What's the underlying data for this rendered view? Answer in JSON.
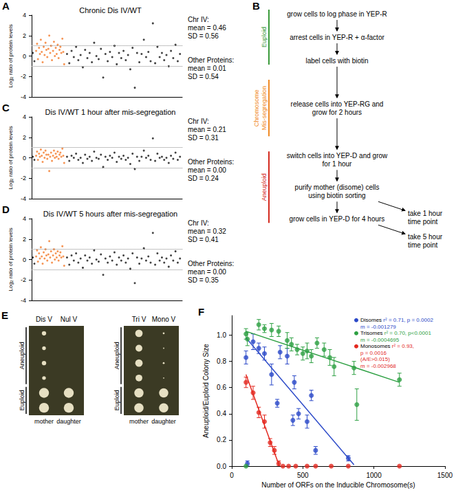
{
  "chart_data": [
    {
      "panel": "A",
      "type": "scatter",
      "title": "Chronic Dis IV/WT",
      "ylabel": "Log₂ ratio of protein levels",
      "xlim": [
        0,
        100
      ],
      "ylim": [
        -4,
        4
      ],
      "yticks": [
        -4,
        -2,
        0,
        2,
        4
      ],
      "tick_labels": "y",
      "grid": false,
      "reference_lines": [
        -1,
        1
      ],
      "annotations": [
        {
          "lines": [
            "Chr IV:",
            "mean = 0.46",
            "SD = 0.56"
          ]
        },
        {
          "lines": [
            "Other Proteins:",
            "mean = 0.01",
            "SD = 0.54"
          ]
        }
      ],
      "series": [
        {
          "name": "Other Proteins",
          "color": "#111111",
          "marker": "circle",
          "x": [
            0.8,
            1.8,
            23.5,
            25,
            26.5,
            28,
            29.5,
            31,
            32.5,
            34,
            35.5,
            37,
            38.5,
            40,
            41.5,
            43,
            44.5,
            46,
            47.5,
            49,
            50.5,
            52,
            53.5,
            55,
            56.5,
            58,
            59.5,
            61,
            62.5,
            64,
            65.5,
            67,
            68.5,
            70,
            71.5,
            73,
            74.5,
            76,
            77.5,
            79,
            80.5,
            82,
            83.5,
            85,
            86.5,
            88,
            89.5,
            91,
            92.5,
            94,
            95.5,
            97,
            98.5
          ],
          "values": [
            0.3,
            -0.5,
            0.2,
            -0.7,
            0.5,
            -0.1,
            0.9,
            -0.4,
            0.1,
            -1.1,
            0.6,
            -0.2,
            0.3,
            -0.6,
            1.3,
            0.0,
            -0.3,
            0.7,
            -2.1,
            0.2,
            -0.5,
            0.4,
            -0.1,
            1.0,
            -0.8,
            0.3,
            -0.2,
            0.5,
            -0.4,
            0.1,
            -1.3,
            0.8,
            -3.1,
            0.3,
            -0.6,
            0.2,
            1.6,
            -0.1,
            0.4,
            -0.5,
            3.2,
            -0.7,
            0.9,
            -0.1,
            0.3,
            -0.4,
            0.1,
            -1.0,
            0.5,
            -0.2,
            1.1,
            -0.5,
            0.2
          ]
        },
        {
          "name": "Chr IV",
          "color": "#f47a2a",
          "marker": "circle",
          "x": [
            3,
            3.6,
            4.2,
            4.9,
            5.5,
            6.1,
            6.7,
            7.3,
            8,
            8.6,
            9.2,
            9.8,
            10.4,
            11.1,
            11.7,
            12.3,
            12.9,
            13.5,
            14.2,
            14.8,
            15.4,
            16,
            16.6,
            17.3,
            17.9,
            18.5,
            19.1,
            19.7,
            20.4,
            21,
            21.6
          ],
          "values": [
            0.5,
            1.2,
            -0.3,
            0.8,
            0.2,
            1.6,
            0.4,
            -0.6,
            0.9,
            0.1,
            1.3,
            0.6,
            -0.1,
            0.7,
            2.0,
            0.3,
            1.0,
            -0.4,
            0.5,
            1.4,
            0.0,
            0.8,
            0.2,
            1.1,
            -0.2,
            0.6,
            0.9,
            0.3,
            1.7,
            0.4,
            -0.8
          ]
        }
      ]
    },
    {
      "panel": "C",
      "type": "scatter",
      "title": "Dis IV/WT 1 hour after mis-segregation",
      "ylabel": "Log₂ ratio of protein levels",
      "xlim": [
        0,
        100
      ],
      "ylim": [
        -4,
        4
      ],
      "yticks": [
        -4,
        -2,
        0,
        2,
        4
      ],
      "tick_labels": "y",
      "grid": false,
      "reference_lines": [
        -1,
        1
      ],
      "annotations": [
        {
          "lines": [
            "Chr IV:",
            "mean = 0.21",
            "SD = 0.31"
          ]
        },
        {
          "lines": [
            "Other Proteins:",
            "mean = 0.00",
            "SD = 0.24"
          ]
        }
      ],
      "series": [
        {
          "name": "Other Proteins",
          "color": "#111111",
          "marker": "circle",
          "x": [
            0.8,
            1.8,
            23.5,
            25,
            26.5,
            28,
            29.5,
            31,
            32.5,
            34,
            35.5,
            37,
            38.5,
            40,
            41.5,
            43,
            44.5,
            46,
            47.5,
            49,
            50.5,
            52,
            53.5,
            55,
            56.5,
            58,
            59.5,
            61,
            62.5,
            64,
            65.5,
            67,
            68.5,
            70,
            71.5,
            73,
            74.5,
            76,
            77.5,
            79,
            80.5,
            82,
            83.5,
            85,
            86.5,
            88,
            89.5,
            91,
            92.5,
            94,
            95.5,
            97,
            98.5
          ],
          "values": [
            0.1,
            -0.2,
            0.1,
            -0.3,
            0.2,
            0.0,
            0.4,
            -0.2,
            0.0,
            -0.5,
            0.3,
            -0.1,
            0.1,
            -0.3,
            0.6,
            0.0,
            -0.1,
            0.3,
            -0.9,
            0.1,
            -0.2,
            0.2,
            0.0,
            0.5,
            -0.4,
            0.1,
            -0.1,
            0.2,
            -0.2,
            0.0,
            -0.6,
            0.4,
            -1.1,
            0.1,
            -0.3,
            0.1,
            0.7,
            0.0,
            0.2,
            -0.2,
            1.9,
            -0.3,
            0.4,
            0.0,
            0.1,
            -0.2,
            0.0,
            -0.5,
            0.2,
            -0.1,
            0.5,
            -0.2,
            0.1
          ]
        },
        {
          "name": "Chr IV",
          "color": "#f47a2a",
          "marker": "circle",
          "x": [
            3,
            3.6,
            4.2,
            4.9,
            5.5,
            6.1,
            6.7,
            7.3,
            8,
            8.6,
            9.2,
            9.8,
            10.4,
            11.1,
            11.7,
            12.3,
            12.9,
            13.5,
            14.2,
            14.8,
            15.4,
            16,
            16.6,
            17.3,
            17.9,
            18.5,
            19.1,
            19.7,
            20.4,
            21,
            21.6
          ],
          "values": [
            0.2,
            0.6,
            -0.2,
            0.4,
            0.1,
            0.8,
            0.2,
            -0.4,
            0.5,
            0.0,
            0.7,
            0.3,
            -0.1,
            0.3,
            -1.3,
            0.1,
            0.5,
            -0.3,
            0.2,
            0.7,
            0.0,
            0.4,
            0.1,
            0.6,
            -0.1,
            0.3,
            0.5,
            0.1,
            0.9,
            0.2,
            -0.5
          ]
        }
      ]
    },
    {
      "panel": "D",
      "type": "scatter",
      "title": "Dis IV/WT 5 hours after mis-segregation",
      "ylabel": "Log₂ ratio of protein levels",
      "xlim": [
        0,
        100
      ],
      "ylim": [
        -4,
        4
      ],
      "yticks": [
        -4,
        -2,
        0,
        2,
        4
      ],
      "tick_labels": "y",
      "grid": false,
      "reference_lines": [
        -1,
        1
      ],
      "annotations": [
        {
          "lines": [
            "Chr IV:",
            "mean = 0.32",
            "SD = 0.41"
          ]
        },
        {
          "lines": [
            "Other Proteins:",
            "mean = 0.00",
            "SD = 0.35"
          ]
        }
      ],
      "series": [
        {
          "name": "Other Proteins",
          "color": "#111111",
          "marker": "circle",
          "x": [
            0.8,
            1.8,
            23.5,
            25,
            26.5,
            28,
            29.5,
            31,
            32.5,
            34,
            35.5,
            37,
            38.5,
            40,
            41.5,
            43,
            44.5,
            46,
            47.5,
            49,
            50.5,
            52,
            53.5,
            55,
            56.5,
            58,
            59.5,
            61,
            62.5,
            64,
            65.5,
            67,
            68.5,
            70,
            71.5,
            73,
            74.5,
            76,
            77.5,
            79,
            80.5,
            82,
            83.5,
            85,
            86.5,
            88,
            89.5,
            91,
            92.5,
            94,
            95.5,
            97,
            98.5
          ],
          "values": [
            0.2,
            -0.4,
            0.2,
            -0.5,
            0.4,
            -0.1,
            0.6,
            -0.3,
            0.1,
            -0.8,
            0.4,
            -0.1,
            0.2,
            -0.4,
            0.9,
            0.0,
            -0.2,
            0.5,
            -1.5,
            0.1,
            -0.3,
            0.3,
            -0.1,
            0.7,
            -0.5,
            0.2,
            -0.1,
            0.4,
            -0.3,
            0.1,
            -0.9,
            0.6,
            -2.3,
            0.2,
            -0.4,
            0.1,
            1.1,
            -0.1,
            0.3,
            -0.3,
            2.6,
            -0.5,
            0.6,
            -0.1,
            0.2,
            -0.3,
            0.1,
            -0.7,
            0.4,
            -0.1,
            0.8,
            -0.3,
            0.1
          ]
        },
        {
          "name": "Chr IV",
          "color": "#f47a2a",
          "marker": "circle",
          "x": [
            3,
            3.6,
            4.2,
            4.9,
            5.5,
            6.1,
            6.7,
            7.3,
            8,
            8.6,
            9.2,
            9.8,
            10.4,
            11.1,
            11.7,
            12.3,
            12.9,
            13.5,
            14.2,
            14.8,
            15.4,
            16,
            16.6,
            17.3,
            17.9,
            18.5,
            19.1,
            19.7,
            20.4,
            21,
            21.6
          ],
          "values": [
            0.3,
            0.9,
            -0.2,
            0.6,
            0.1,
            1.2,
            0.3,
            -0.4,
            0.7,
            0.1,
            1.0,
            0.4,
            -0.1,
            0.5,
            1.8,
            0.2,
            0.8,
            -0.3,
            0.4,
            1.0,
            0.0,
            0.6,
            0.2,
            0.8,
            -0.1,
            0.4,
            0.7,
            0.2,
            1.3,
            0.3,
            -0.6
          ]
        }
      ]
    },
    {
      "panel": "F",
      "type": "scatter",
      "xlabel": "Number of ORFs on the Inducible Chromosome(s)",
      "ylabel": "Aneuploid/Euploid Colony Size",
      "xlim": [
        0,
        1500
      ],
      "xticks": [
        0,
        500,
        1000,
        1500
      ],
      "ylim": [
        0,
        1.15
      ],
      "yticks": [
        {
          "value": 0,
          "label": "0.0"
        },
        0.2,
        0.4,
        0.6,
        0.8,
        {
          "value": 1,
          "label": "1.0"
        }
      ],
      "grid": false,
      "legend": "upper right",
      "series": [
        {
          "name": "Disomes",
          "color": "#2b49c8",
          "marker": "circle",
          "stats": [
            "r² = 0.71, p = 0.0002",
            "m = -0.001279"
          ],
          "x": [
            100,
            110,
            150,
            190,
            230,
            280,
            320,
            340,
            390,
            430,
            440,
            470,
            530,
            560,
            590,
            820
          ],
          "values": [
            0.83,
            0.02,
            0.95,
            0.9,
            0.86,
            0.7,
            0.48,
            0.87,
            0.84,
            0.35,
            0.64,
            0.4,
            0.34,
            0.54,
            0.12,
            0.06
          ],
          "errors": [
            0.05,
            0.02,
            0.06,
            0.04,
            0.05,
            0.08,
            0.03,
            0.05,
            0.06,
            0.04,
            0.05,
            0.04,
            0.05,
            0.04,
            0.03,
            0.02
          ],
          "fit": {
            "x": [
              100,
              860
            ],
            "values": [
              0.98,
              0.01
            ]
          }
        },
        {
          "name": "Trisomes",
          "color": "#2ea043",
          "marker": "circle",
          "stats": [
            "r² = 0.70, p<0.0001",
            "m = -0.0004695"
          ],
          "x": [
            100,
            100,
            110,
            190,
            230,
            280,
            330,
            390,
            420,
            460,
            500,
            530,
            560,
            600,
            650,
            690,
            720,
            860,
            880,
            1180
          ],
          "values": [
            0.0,
            1.01,
            0.97,
            1.08,
            1.05,
            1.04,
            1.03,
            0.96,
            0.93,
            0.89,
            0.86,
            0.88,
            0.84,
            0.94,
            0.89,
            0.83,
            0.76,
            0.75,
            0.47,
            0.66
          ],
          "errors": [
            0,
            0.04,
            0.05,
            0.04,
            0.03,
            0.05,
            0.04,
            0.06,
            0.05,
            0.04,
            0.05,
            0.06,
            0.05,
            0.04,
            0.05,
            0.06,
            0.07,
            0.05,
            0.12,
            0.05
          ],
          "fit": {
            "x": [
              100,
              1180
            ],
            "values": [
              1.03,
              0.64
            ]
          }
        },
        {
          "name": "Monosomes",
          "color": "#e3281f",
          "marker": "circle",
          "stats": [
            "r² = 0.93,",
            "p = 0.0016",
            "(A/E>0.015)",
            "m = -0.002968"
          ],
          "x": [
            100,
            150,
            190,
            230,
            270,
            300,
            330,
            360,
            400,
            450,
            530,
            590,
            700,
            820,
            1180
          ],
          "values": [
            0.64,
            0.56,
            0.41,
            0.34,
            0.18,
            0.12,
            0.02,
            0,
            0,
            0,
            0,
            0,
            0,
            0,
            0
          ],
          "errors": [
            0.04,
            0.05,
            0.04,
            0.05,
            0.03,
            0.03,
            0.02,
            0,
            0,
            0,
            0,
            0,
            0,
            0,
            0
          ],
          "fit": {
            "x": [
              100,
              335
            ],
            "values": [
              0.7,
              0.0
            ]
          }
        }
      ]
    }
  ],
  "diagram": {
    "panel": "B",
    "phases": [
      {
        "label": "Euploid",
        "color": "#3a9a3a",
        "steps": [
          {
            "text": "grow cells to log phase in YEP-R"
          },
          {
            "text": "arrest cells in YEP-R + α-factor"
          },
          {
            "text": "label cells with biotin"
          }
        ]
      },
      {
        "label": "Chromosome Mis-segregation",
        "color": "#f08a24",
        "steps": [
          {
            "text": "release cells into YEP-RG and grow for 2 hours"
          }
        ]
      },
      {
        "label": "Aneuploid",
        "color": "#d42a1e",
        "steps": [
          {
            "text": "switch cells into YEP-D and grow for 1 hour"
          },
          {
            "text": "purify mother (disome) cells using biotin sorting",
            "branch": "take 1 hour time point"
          },
          {
            "text": "grow cells in YEP-D for 4 hours",
            "branch": "take 5 hour time point"
          }
        ]
      }
    ]
  },
  "image": {
    "panel": "E",
    "groups": [
      {
        "label": "Aneuploid",
        "rows": 4
      },
      {
        "label": "Euploid",
        "rows": 2
      }
    ],
    "column_labels": [
      "mother",
      "daughter"
    ],
    "photos": [
      {
        "columns": [
          "Dis V",
          "Nul V"
        ],
        "colony_size": [
          [
            0.35,
            0
          ],
          [
            0.3,
            0
          ],
          [
            0.35,
            0
          ],
          [
            0.3,
            0
          ],
          [
            0.8,
            0.8
          ],
          [
            0.8,
            0.8
          ]
        ]
      },
      {
        "columns": [
          "Tri V",
          "Mono V"
        ],
        "colony_size": [
          [
            0.6,
            0.15
          ],
          [
            0.55,
            0.1
          ],
          [
            0.6,
            0.15
          ],
          [
            0.55,
            0.1
          ],
          [
            0.75,
            0.75
          ],
          [
            0.75,
            0.75
          ]
        ]
      }
    ]
  }
}
